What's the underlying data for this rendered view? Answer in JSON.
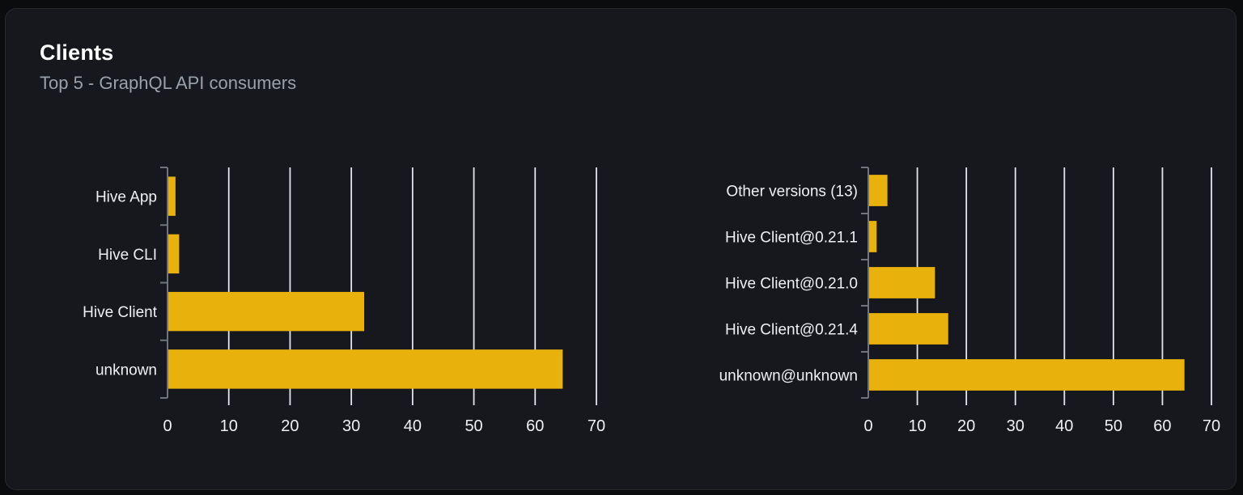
{
  "card": {
    "title": "Clients",
    "subtitle": "Top 5 - GraphQL API consumers"
  },
  "theme": {
    "page_bg": "#0b0c0e",
    "card_bg": "#16181d",
    "card_border": "#26282e",
    "title_color": "#ffffff",
    "subtitle_color": "#9aa1ab"
  },
  "chart_data": [
    {
      "type": "bar",
      "orientation": "horizontal",
      "name": "top-clients",
      "categories": [
        "Hive App",
        "Hive CLI",
        "Hive Client",
        "unknown"
      ],
      "values": [
        1.3,
        1.9,
        32.1,
        64.5
      ],
      "xlabel": "",
      "ylabel": "",
      "xlim": [
        0,
        70
      ],
      "xticks": [
        0,
        10,
        20,
        30,
        40,
        50,
        60,
        70
      ],
      "grid": true,
      "legend": false,
      "bar_color": "#e9b10b",
      "grid_color": "#e2e5ec",
      "axis_color": "#70747d",
      "text_color": "#eef0f4",
      "label_width": 200
    },
    {
      "type": "bar",
      "orientation": "horizontal",
      "name": "top-client-versions",
      "categories": [
        "Other versions (13)",
        "Hive Client@0.21.1",
        "Hive Client@0.21.0",
        "Hive Client@0.21.4",
        "unknown@unknown"
      ],
      "values": [
        3.9,
        1.7,
        13.6,
        16.3,
        64.5
      ],
      "xlabel": "",
      "ylabel": "",
      "xlim": [
        0,
        70
      ],
      "xticks": [
        0,
        10,
        20,
        30,
        40,
        50,
        60,
        70
      ],
      "grid": true,
      "legend": false,
      "bar_color": "#e9b10b",
      "grid_color": "#e2e5ec",
      "axis_color": "#70747d",
      "text_color": "#eef0f4",
      "label_width": 306
    }
  ]
}
